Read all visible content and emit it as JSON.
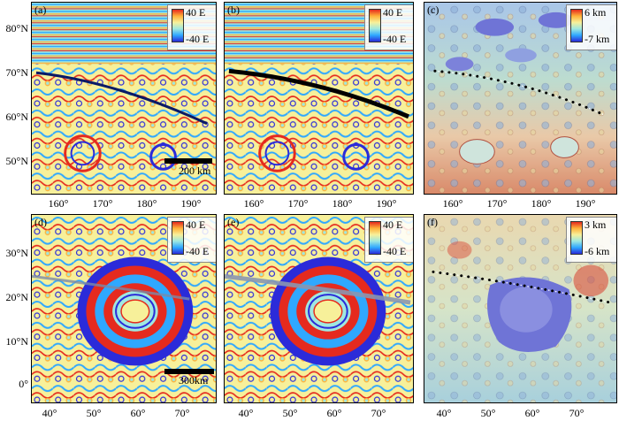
{
  "panels": {
    "a": {
      "label": "(a)",
      "cmax": "40 E",
      "cmin": "-40 E",
      "scale": "200 km"
    },
    "b": {
      "label": "(b)",
      "cmax": "40 E",
      "cmin": "-40 E"
    },
    "c": {
      "label": "(c)",
      "cmax": "6 km",
      "cmin": "-7 km"
    },
    "d": {
      "label": "(d)",
      "cmax": "40 E",
      "cmin": "-40 E",
      "scale": "300km"
    },
    "e": {
      "label": "(e)",
      "cmax": "40 E",
      "cmin": "-40 E"
    },
    "f": {
      "label": "(f)",
      "cmax": "3 km",
      "cmin": "-6 km"
    }
  },
  "axes": {
    "top_lat": [
      "80°N",
      "70°N",
      "60°N",
      "50°N"
    ],
    "top_lon": [
      "160°",
      "170°",
      "180°",
      "190°"
    ],
    "bottom_lat": [
      "30°N",
      "20°N",
      "10°N",
      "0°"
    ],
    "bottom_lon": [
      "40°",
      "50°",
      "60°",
      "70°"
    ]
  },
  "colors": {
    "rainbow": [
      "#2b2bd9",
      "#2fa8ff",
      "#9fe8e0",
      "#f7f09a",
      "#ffb23a",
      "#e52a1e"
    ],
    "topo_low": "#6f74d6",
    "topo_mid": "#bcdcd0",
    "topo_high": "#d94f3c"
  }
}
